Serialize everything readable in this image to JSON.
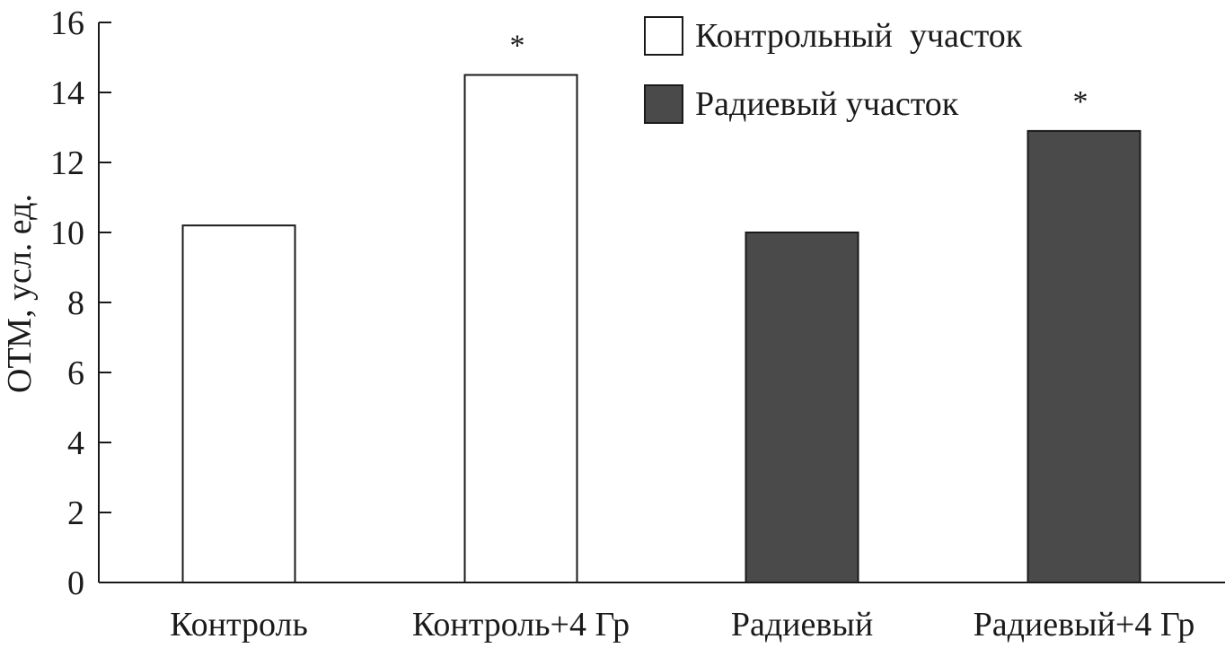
{
  "chart_data": {
    "type": "bar",
    "ylabel": "ОТМ, усл. ед.",
    "xlabel": "",
    "ylim": [
      0,
      16
    ],
    "yticks": [
      0,
      2,
      4,
      6,
      8,
      10,
      12,
      14,
      16
    ],
    "categories": [
      "Контроль",
      "Контроль+4 Гр",
      "Радиевый",
      "Радиевый+4 Гр"
    ],
    "values": [
      10.2,
      14.5,
      10.0,
      12.9
    ],
    "bar_series": [
      0,
      0,
      1,
      1
    ],
    "significance": [
      "",
      "*",
      "",
      "*"
    ],
    "series": [
      {
        "name": "Контрольный  участок",
        "color": "#ffffff"
      },
      {
        "name": "Радиевый участок",
        "color": "#4a4a4a"
      }
    ],
    "legend_position": "top-right",
    "grid": false
  }
}
